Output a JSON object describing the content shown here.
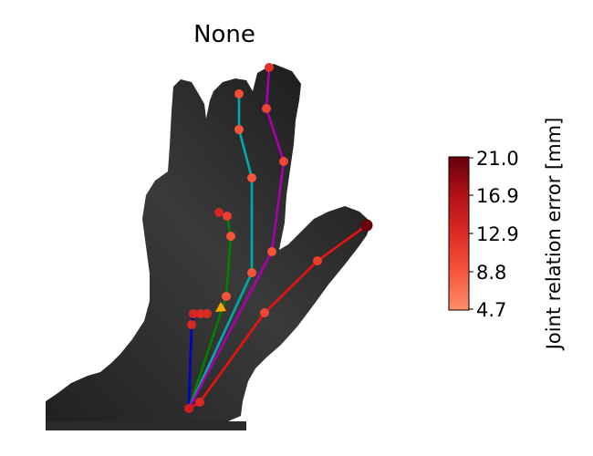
{
  "chart_data": {
    "type": "scatter",
    "title": "None",
    "colorbar": {
      "label": "Joint relation error [mm]",
      "ticks": [
        "21.0",
        "16.9",
        "12.9",
        "8.8",
        "4.7"
      ],
      "min": 4.7,
      "max": 21.0,
      "colormap": "Reds"
    },
    "background": "depth image of hand (grayscale)",
    "series": [
      {
        "color": "#0000cc",
        "points": [
          [
            207,
            448
          ],
          [
            210,
            356
          ],
          [
            212,
            344
          ],
          [
            220,
            344
          ],
          [
            227,
            344
          ]
        ],
        "errors": [
          14.5,
          13.5,
          13.5,
          13.0,
          13.0
        ]
      },
      {
        "color": "#008000",
        "points": [
          [
            207,
            448
          ],
          [
            248,
            325
          ],
          [
            253,
            259
          ],
          [
            249,
            237
          ],
          [
            240,
            233
          ]
        ],
        "errors": [
          14.5,
          9.0,
          9.0,
          11.0,
          13.5
        ]
      },
      {
        "color": "#00aaaa",
        "points": [
          [
            207,
            448
          ],
          [
            276,
            299
          ],
          [
            276,
            195
          ],
          [
            262,
            142
          ],
          [
            262,
            103
          ]
        ],
        "errors": [
          14.5,
          9.0,
          9.0,
          9.0,
          9.5
        ]
      },
      {
        "color": "#aa00aa",
        "points": [
          [
            207,
            448
          ],
          [
            298,
            276
          ],
          [
            311,
            177
          ],
          [
            292,
            119
          ],
          [
            295,
            74
          ]
        ],
        "errors": [
          14.5,
          9.0,
          10.0,
          10.5,
          12.0
        ]
      },
      {
        "color": "#ee1111",
        "points": [
          [
            207,
            448
          ],
          [
            219,
            441
          ],
          [
            290,
            343
          ],
          [
            348,
            286
          ],
          [
            402,
            247
          ]
        ],
        "errors": [
          14.5,
          13.0,
          10.0,
          11.0,
          21.0
        ]
      }
    ],
    "arrow_color": "#ffa500"
  }
}
